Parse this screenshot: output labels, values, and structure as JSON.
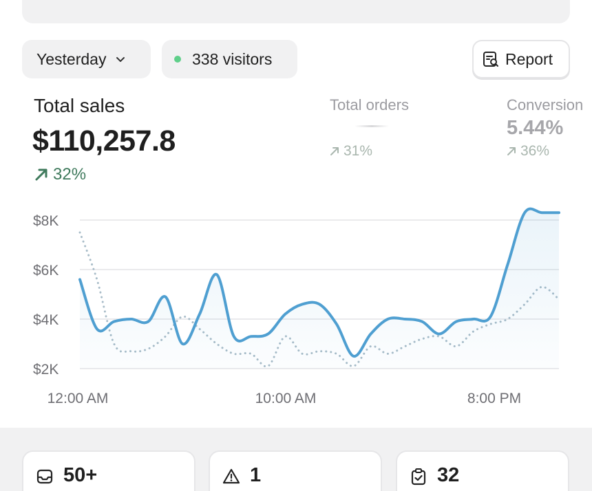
{
  "filters": {
    "date_label": "Yesterday",
    "visitors_label": "338 visitors",
    "visitors_dot_color": "#5fcf8a"
  },
  "report_button": {
    "label": "Report"
  },
  "metrics": {
    "total_sales": {
      "title": "Total sales",
      "value": "$110,257.8",
      "change": "32%"
    },
    "total_orders": {
      "title": "Total orders",
      "value": "",
      "change": "31%"
    },
    "conversion": {
      "title": "Conversion",
      "value": "5.44%",
      "change": "36%"
    }
  },
  "chart_data": {
    "type": "line",
    "x_tick_labels": [
      "12:00 AM",
      "10:00 AM",
      "8:00 PM"
    ],
    "y_tick_labels": [
      "$8K",
      "$6K",
      "$4K",
      "$2K"
    ],
    "y_ticks": [
      8000,
      6000,
      4000,
      2000
    ],
    "ylim": [
      2000,
      8000
    ],
    "grid": true,
    "series": [
      {
        "style": "solid",
        "color": "#4f9fd1",
        "values": [
          5600,
          3600,
          3900,
          4000,
          3900,
          4900,
          3000,
          4200,
          5800,
          3300,
          3300,
          3400,
          4200,
          4600,
          4600,
          3800,
          2500,
          3400,
          4000,
          4000,
          3900,
          3400,
          3900,
          4000,
          4100,
          6200,
          8300,
          8300,
          8300
        ]
      },
      {
        "style": "dotted",
        "color": "#a8bcc8",
        "values": [
          7500,
          5600,
          3000,
          2700,
          2800,
          3300,
          4100,
          3600,
          3000,
          2600,
          2600,
          2100,
          3300,
          2600,
          2700,
          2600,
          2100,
          2900,
          2600,
          2900,
          3200,
          3300,
          2900,
          3500,
          3800,
          4000,
          4600,
          5300,
          4800
        ]
      }
    ]
  },
  "stat_cards": [
    {
      "icon": "inbox-icon",
      "value": "50+"
    },
    {
      "icon": "alert-triangle-icon",
      "value": "1"
    },
    {
      "icon": "clipboard-check-icon",
      "value": "32"
    }
  ]
}
